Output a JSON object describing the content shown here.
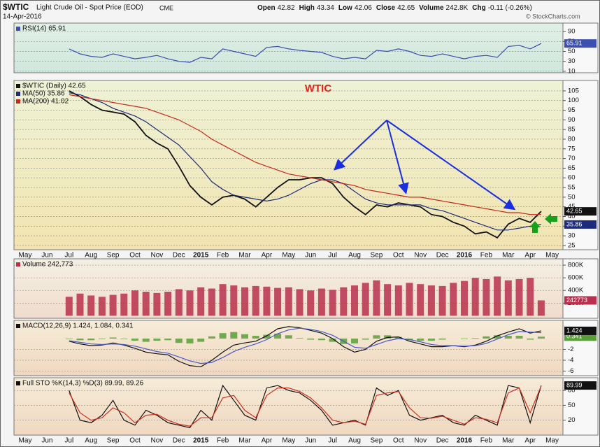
{
  "header": {
    "symbol": "$WTIC",
    "name": "Light Crude Oil - Spot Price (EOD)",
    "exchange": "CME",
    "date": "14-Apr-2016",
    "quote": [
      {
        "label": "Open",
        "value": "42.82"
      },
      {
        "label": "High",
        "value": "43.34"
      },
      {
        "label": "Low",
        "value": "42.06"
      },
      {
        "label": "Close",
        "value": "42.65"
      },
      {
        "label": "Volume",
        "value": "242.8K"
      },
      {
        "label": "Chg",
        "value": "-0.11 (-0.26%)"
      }
    ],
    "credit": "© StockCharts.com"
  },
  "chart_data": [
    {
      "type": "line",
      "ylim": [
        7,
        107
      ],
      "yticks": [
        10,
        30,
        50,
        70,
        90
      ],
      "series": [
        {
          "name": "RSI(14) 65.91",
          "color": "#3a4fb0",
          "tagged": true,
          "values": [
            null,
            null,
            null,
            null,
            55,
            45,
            40,
            38,
            45,
            40,
            35,
            38,
            42,
            35,
            30,
            28,
            38,
            35,
            55,
            50,
            45,
            40,
            58,
            60,
            55,
            52,
            50,
            48,
            40,
            35,
            38,
            35,
            52,
            50,
            55,
            50,
            42,
            40,
            45,
            40,
            35,
            40,
            42,
            38,
            60,
            62,
            55,
            65.91,
            null,
            null
          ]
        }
      ]
    },
    {
      "type": "line",
      "annotation": "WTIC",
      "ylim": [
        22.8,
        110.4
      ],
      "yticks": [
        25,
        30,
        35,
        40,
        45,
        50,
        55,
        60,
        65,
        70,
        75,
        80,
        85,
        90,
        95,
        100,
        105
      ],
      "categories": [
        "May",
        null,
        "Jun",
        null,
        "Jul",
        null,
        "Aug",
        null,
        "Sep",
        null,
        "Oct",
        null,
        "Nov",
        null,
        "Dec",
        null,
        "2015",
        null,
        "Feb",
        null,
        "Mar",
        null,
        "Apr",
        null,
        "May",
        null,
        "Jun",
        null,
        "Jul",
        null,
        "Aug",
        null,
        "Sep",
        null,
        "Oct",
        null,
        "Nov",
        null,
        "Dec",
        null,
        "2016",
        null,
        "Feb",
        null,
        "Mar",
        null,
        "Apr",
        null,
        "May",
        null
      ],
      "series": [
        {
          "name": "$WTIC (Daily) 42.65",
          "color": "#111111",
          "tagged": true,
          "values": [
            null,
            null,
            null,
            null,
            105,
            102,
            98,
            95,
            94,
            93,
            89,
            82,
            78,
            75,
            66,
            56,
            50,
            46,
            50,
            51,
            49,
            45,
            50,
            55,
            59,
            59,
            60,
            60,
            57,
            50,
            45,
            41,
            46,
            45,
            47,
            46,
            45,
            41,
            40,
            37,
            35,
            31,
            32,
            29,
            36,
            39,
            37,
            42.65,
            null,
            null
          ]
        },
        {
          "name": "MA(50) 35.86",
          "color": "#1e2a7a",
          "tagged": true,
          "values": [
            null,
            null,
            null,
            null,
            104,
            103,
            101,
            99,
            96,
            94,
            92,
            89,
            85,
            81,
            77,
            71,
            65,
            58,
            54,
            51,
            50,
            49,
            48,
            49,
            51,
            54,
            57,
            59,
            59,
            57,
            53,
            49,
            47,
            46,
            46,
            46,
            46,
            44,
            43,
            41,
            39,
            37,
            35,
            33,
            33,
            34,
            35,
            35.86,
            null,
            null
          ]
        },
        {
          "name": "MA(200) 41.02",
          "color": "#c8281e",
          "tagged": false,
          "values": [
            null,
            null,
            null,
            null,
            103,
            102,
            101,
            100,
            99,
            98,
            97,
            96,
            94,
            92,
            90,
            87,
            84,
            80,
            77,
            74,
            71,
            68,
            66,
            64,
            62,
            61,
            60,
            59,
            58,
            57,
            56,
            54,
            53,
            52,
            51,
            50,
            50,
            49,
            48,
            47,
            46,
            45,
            44,
            43,
            42,
            42,
            41,
            41.02,
            null,
            null
          ]
        }
      ]
    },
    {
      "type": "bar",
      "ylim": [
        -40000,
        900000
      ],
      "yticks": [
        {
          "value": 200000,
          "label": "200K"
        },
        {
          "value": 400000,
          "label": "400K"
        },
        {
          "value": 600000,
          "label": "600K"
        },
        {
          "value": 800000,
          "label": "800K"
        }
      ],
      "series": [
        {
          "name": "Volume 242,773",
          "color": "#b8304e",
          "tagged": true,
          "values": [
            null,
            null,
            null,
            null,
            300000,
            350000,
            320000,
            300000,
            330000,
            350000,
            400000,
            380000,
            360000,
            380000,
            420000,
            400000,
            450000,
            430000,
            500000,
            480000,
            450000,
            470000,
            460000,
            440000,
            450000,
            420000,
            400000,
            430000,
            410000,
            450000,
            480000,
            520000,
            560000,
            500000,
            480000,
            520000,
            500000,
            480000,
            470000,
            520000,
            550000,
            600000,
            580000,
            620000,
            560000,
            580000,
            600000,
            242773,
            null,
            null
          ]
        }
      ]
    },
    {
      "type": "combo",
      "title": "MACD(12,26,9) 1.424, 1.084, 0.341",
      "ylim": [
        -6.84,
        3.35
      ],
      "yticks": [
        -6,
        -4,
        -2
      ],
      "series": [
        {
          "kind": "bar",
          "color": "#5a9e3a",
          "tagged": true,
          "values": [
            null,
            null,
            null,
            null,
            -0.1,
            -0.3,
            -0.3,
            -0.1,
            0.2,
            -0.1,
            -0.4,
            -0.6,
            -0.4,
            -0.3,
            -0.8,
            -0.9,
            -0.6,
            0.4,
            1,
            1.2,
            0.8,
            0.5,
            0.7,
            0.9,
            0.6,
            0.1,
            -0.2,
            -0.3,
            -0.6,
            -1,
            -0.9,
            -0.2,
            0.6,
            0.6,
            0.3,
            -0.3,
            -0.4,
            -0.4,
            -0.2,
            0,
            -0.1,
            0.1,
            0.4,
            0.6,
            0.5,
            0.5,
            -0.2,
            0.341,
            null,
            null
          ]
        },
        {
          "kind": "line",
          "color": "#111111",
          "tagged": true,
          "values": [
            null,
            null,
            null,
            null,
            -0.5,
            -1,
            -1.3,
            -1.2,
            -0.8,
            -1.2,
            -1.8,
            -2.5,
            -2.8,
            -3,
            -4.2,
            -5,
            -5.2,
            -4,
            -2.5,
            -1.2,
            -0.8,
            -0.5,
            0.5,
            1.8,
            2.2,
            2,
            1.5,
            1,
            0,
            -1.5,
            -2.5,
            -2,
            -0.5,
            0.2,
            0.3,
            -0.5,
            -1,
            -1.5,
            -1.5,
            -1.3,
            -1.5,
            -1.2,
            -0.5,
            0.5,
            1.2,
            1.8,
            1,
            1.424,
            null,
            null
          ]
        },
        {
          "kind": "line",
          "color": "#4a5ac8",
          "tagged": false,
          "values": [
            null,
            null,
            null,
            null,
            -0.4,
            -0.7,
            -1,
            -1.1,
            -1,
            -1.1,
            -1.4,
            -1.9,
            -2.4,
            -2.7,
            -3.4,
            -4.1,
            -4.6,
            -4.4,
            -3.5,
            -2.4,
            -1.6,
            -1,
            -0.2,
            0.9,
            1.6,
            1.9,
            1.7,
            1.3,
            0.6,
            -0.5,
            -1.6,
            -1.8,
            -1.1,
            -0.4,
            0,
            -0.2,
            -0.6,
            -1.1,
            -1.3,
            -1.3,
            -1.4,
            -1.3,
            -0.9,
            -0.1,
            0.7,
            1.3,
            1.2,
            1.084,
            null,
            null
          ]
        }
      ]
    },
    {
      "type": "line",
      "title": "Full STO %K(14,3) %D(3) 89.99, 89.26",
      "ylim": [
        -10,
        105.6
      ],
      "yticks": [
        20,
        50,
        80
      ],
      "categories": [
        "May",
        null,
        "Jun",
        null,
        "Jul",
        null,
        "Aug",
        null,
        "Sep",
        null,
        "Oct",
        null,
        "Nov",
        null,
        "Dec",
        null,
        "2015",
        null,
        "Feb",
        null,
        "Mar",
        null,
        "Apr",
        null,
        "May",
        null,
        "Jun",
        null,
        "Jul",
        null,
        "Aug",
        null,
        "Sep",
        null,
        "Oct",
        null,
        "Nov",
        null,
        "Dec",
        null,
        "2016",
        null,
        "Feb",
        null,
        "Mar",
        null,
        "Apr",
        null,
        "May",
        null
      ],
      "series": [
        {
          "color": "#111111",
          "tagged": true,
          "values": [
            null,
            null,
            null,
            null,
            80,
            20,
            15,
            30,
            60,
            20,
            10,
            40,
            30,
            15,
            10,
            5,
            40,
            20,
            90,
            60,
            30,
            20,
            85,
            90,
            80,
            75,
            60,
            40,
            10,
            15,
            20,
            10,
            85,
            70,
            80,
            30,
            20,
            25,
            30,
            15,
            10,
            30,
            20,
            10,
            90,
            85,
            15,
            89.99,
            null,
            null
          ]
        },
        {
          "color": "#d03020",
          "tagged": false,
          "values": [
            null,
            null,
            null,
            null,
            75,
            35,
            20,
            25,
            45,
            35,
            15,
            30,
            32,
            20,
            12,
            8,
            25,
            25,
            65,
            70,
            40,
            25,
            70,
            85,
            85,
            78,
            65,
            45,
            20,
            15,
            18,
            12,
            70,
            75,
            78,
            45,
            25,
            24,
            28,
            20,
            12,
            25,
            22,
            15,
            75,
            85,
            35,
            89.26,
            null,
            null
          ]
        }
      ]
    }
  ]
}
